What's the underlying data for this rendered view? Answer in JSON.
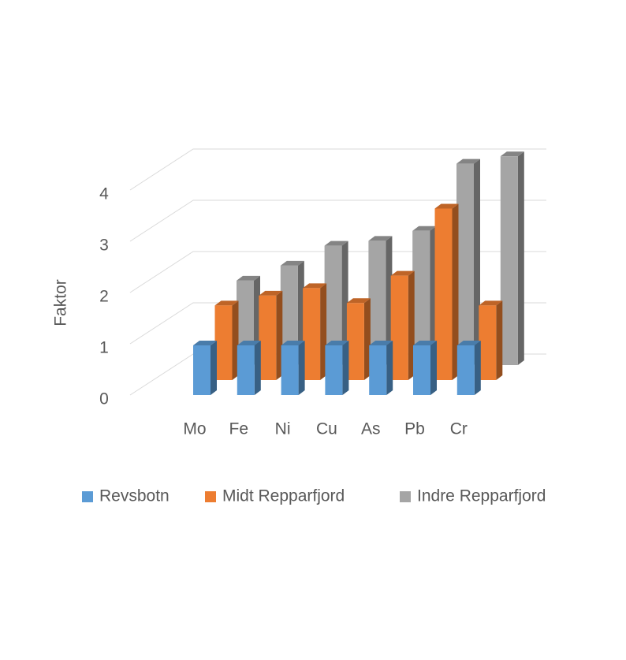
{
  "chart_data": {
    "type": "bar3d",
    "y_label": "Faktor",
    "categories": [
      "Mo",
      "Fe",
      "Ni",
      "Cu",
      "As",
      "Pb",
      "Cr"
    ],
    "series": [
      {
        "name": "Revsbotn",
        "color": "#5b9bd5",
        "values": [
          1.0,
          1.0,
          1.0,
          1.0,
          1.0,
          1.0,
          1.0
        ]
      },
      {
        "name": "Midt Repparfjord",
        "color": "#ed7d31",
        "values": [
          1.5,
          1.7,
          1.85,
          1.55,
          2.1,
          3.45,
          1.5
        ]
      },
      {
        "name": "Indre Repparfjord",
        "color": "#a5a5a5",
        "values": [
          1.7,
          2.0,
          2.4,
          2.5,
          2.7,
          4.05,
          4.2
        ]
      }
    ],
    "ylim": [
      0,
      4
    ],
    "yticks": [
      0,
      1,
      2,
      3,
      4
    ],
    "grid": true,
    "legend": "bottom"
  }
}
